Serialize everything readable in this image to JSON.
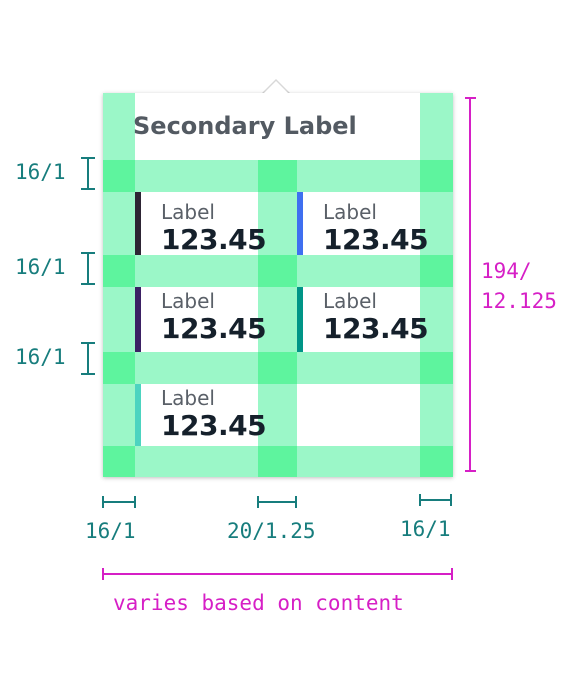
{
  "tooltip": {
    "title": "Secondary Label",
    "items": [
      {
        "label": "Label",
        "value": "123.45",
        "color": "#2d2434"
      },
      {
        "label": "Label",
        "value": "123.45",
        "color": "#3f6ff0"
      },
      {
        "label": "Label",
        "value": "123.45",
        "color": "#3b2064"
      },
      {
        "label": "Label",
        "value": "123.45",
        "color": "#009587"
      },
      {
        "label": "Label",
        "value": "123.45",
        "color": "#4cd4c0"
      }
    ]
  },
  "annotations": {
    "row_gap_1": "16/1",
    "row_gap_2": "16/1",
    "row_gap_3": "16/1",
    "height_line1": "194/",
    "height_line2": "12.125",
    "left_padding": "16/1",
    "column_gap": "20/1.25",
    "right_padding": "16/1",
    "width_note": "varies based on content"
  },
  "colors": {
    "spacing_band": "#9bf7c8",
    "spacing_intersection": "#5ef49e",
    "annotation_teal": "#177d7d",
    "annotation_magenta": "#d61fc6"
  }
}
